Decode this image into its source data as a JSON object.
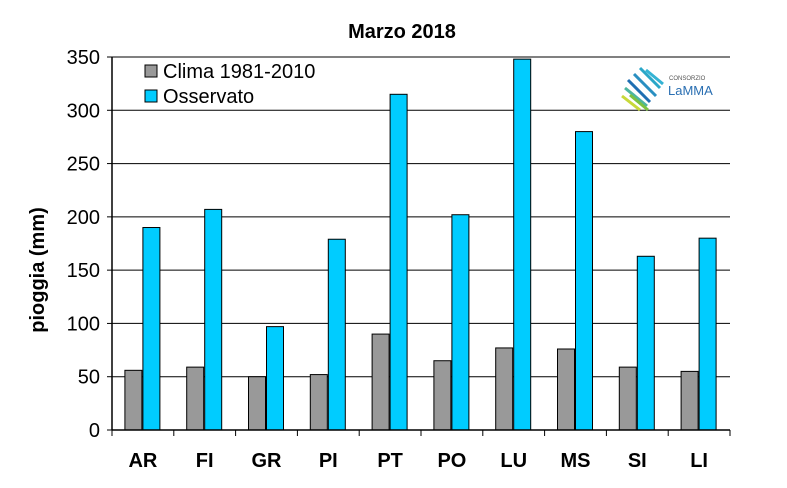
{
  "chart_data": {
    "type": "bar",
    "title": "Marzo 2018",
    "xlabel": "",
    "ylabel": "pioggia (mm)",
    "ylim": [
      0,
      350
    ],
    "yticks": [
      0,
      50,
      100,
      150,
      200,
      250,
      300,
      350
    ],
    "categories": [
      "AR",
      "FI",
      "GR",
      "PI",
      "PT",
      "PO",
      "LU",
      "MS",
      "SI",
      "LI"
    ],
    "series": [
      {
        "name": "Clima 1981-2010",
        "color": "#999999",
        "values": [
          56,
          59,
          50,
          52,
          90,
          65,
          77,
          76,
          59,
          55
        ]
      },
      {
        "name": "Osservato",
        "color": "#00ccff",
        "values": [
          190,
          207,
          97,
          179,
          315,
          202,
          348,
          280,
          163,
          180
        ]
      }
    ],
    "grid": "horizontal",
    "legend_position": "top-left"
  },
  "logo": {
    "small_text": "CONSORZIO",
    "name": "LaMMA",
    "colors": [
      "#1f6fb2",
      "#2aa7c8",
      "#7cc242",
      "#c8d93a"
    ]
  }
}
